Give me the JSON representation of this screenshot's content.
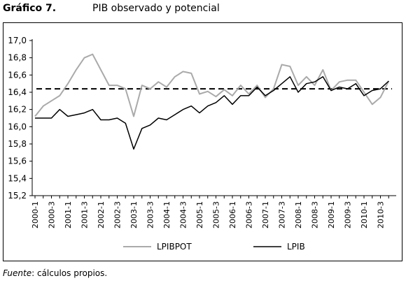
{
  "figure": {
    "label": "Gráfico 7.",
    "title": "PIB observado y potencial"
  },
  "source": {
    "prefix": "Fuente",
    "text": ": cálculos propios."
  },
  "chart_data": {
    "type": "line",
    "title": "PIB observado y potencial",
    "ylim": [
      15.2,
      17.0
    ],
    "yticks": [
      "17,0",
      "16,8",
      "16,6",
      "16,4",
      "16,2",
      "16,0",
      "15,8",
      "15,6",
      "15,4",
      "15,2"
    ],
    "x": [
      "2000-1",
      "2000-2",
      "2000-3",
      "2000-4",
      "2001-1",
      "2001-2",
      "2001-3",
      "2001-4",
      "2002-1",
      "2002-2",
      "2002-3",
      "2002-4",
      "2003-1",
      "2003-2",
      "2003-3",
      "2003-4",
      "2004-1",
      "2004-2",
      "2004-3",
      "2004-4",
      "2005-1",
      "2005-2",
      "2005-3",
      "2005-4",
      "2006-1",
      "2006-2",
      "2006-3",
      "2006-4",
      "2007-1",
      "2007-2",
      "2007-3",
      "2007-4",
      "2008-1",
      "2008-2",
      "2008-3",
      "2008-4",
      "2009-1",
      "2009-2",
      "2009-3",
      "2009-4",
      "2010-1",
      "2010-2",
      "2010-3",
      "2010-4"
    ],
    "xtick_labels": [
      "2000-1",
      "2000-3",
      "2001-1",
      "2001-3",
      "2002-1",
      "2002-3",
      "2003-1",
      "2003-3",
      "2004-1",
      "2004-3",
      "2005-1",
      "2005-3",
      "2006-1",
      "2006-3",
      "2007-1",
      "2007-3",
      "2008-1",
      "2008-3",
      "2009-1",
      "2009-3",
      "2010-1",
      "2010-3"
    ],
    "series": [
      {
        "name": "LPIBPOT",
        "color": "#aaaaaa",
        "values": [
          16.12,
          16.24,
          16.3,
          16.36,
          16.5,
          16.66,
          16.8,
          16.84,
          16.66,
          16.48,
          16.48,
          16.44,
          16.12,
          16.48,
          16.44,
          16.52,
          16.46,
          16.58,
          16.64,
          16.62,
          16.38,
          16.41,
          16.35,
          16.43,
          16.36,
          16.48,
          16.38,
          16.48,
          16.34,
          16.44,
          16.72,
          16.7,
          16.48,
          16.58,
          16.48,
          16.66,
          16.42,
          16.52,
          16.54,
          16.54,
          16.4,
          16.26,
          16.34,
          16.53
        ]
      },
      {
        "name": "LPIB",
        "color": "#000000",
        "values": [
          16.1,
          16.1,
          16.1,
          16.2,
          16.12,
          16.14,
          16.16,
          16.2,
          16.08,
          16.08,
          16.1,
          16.04,
          15.74,
          15.98,
          16.02,
          16.1,
          16.08,
          16.14,
          16.2,
          16.24,
          16.16,
          16.24,
          16.28,
          16.36,
          16.26,
          16.36,
          16.36,
          16.46,
          16.36,
          16.42,
          16.5,
          16.58,
          16.4,
          16.5,
          16.52,
          16.58,
          16.42,
          16.46,
          16.44,
          16.5,
          16.36,
          16.42,
          16.44,
          16.53
        ]
      }
    ],
    "reference_line": {
      "value": 16.44,
      "style": "dashed"
    },
    "legend": {
      "position": "bottom"
    },
    "grid": false
  }
}
